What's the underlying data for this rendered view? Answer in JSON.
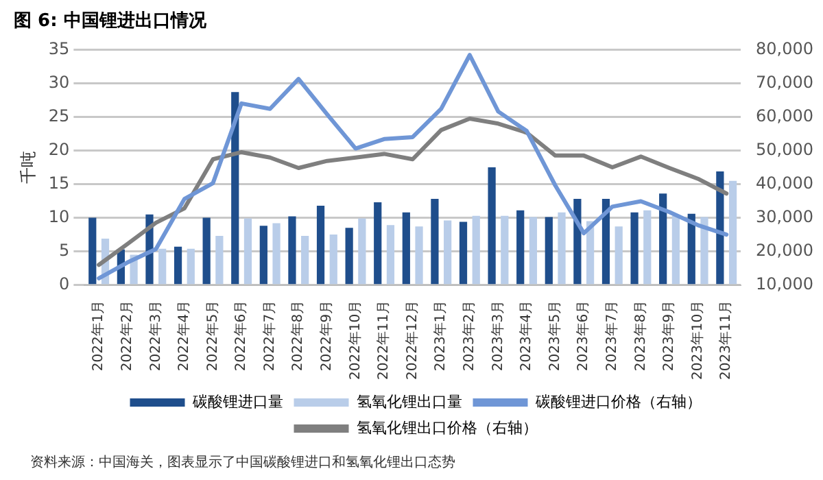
{
  "chart_data": {
    "type": "bar",
    "title": "图 6:  中国锂进出口情况",
    "ylabel": "千吨",
    "categories": [
      "2022年1月",
      "2022年2月",
      "2022年3月",
      "2022年4月",
      "2022年5月",
      "2022年6月",
      "2022年7月",
      "2022年8月",
      "2022年9月",
      "2022年10月",
      "2022年11月",
      "2022年12月",
      "2023年1月",
      "2023年2月",
      "2023年3月",
      "2023年4月",
      "2023年5月",
      "2023年6月",
      "2023年7月",
      "2023年8月",
      "2023年9月",
      "2023年10月",
      "2023年11月"
    ],
    "series": [
      {
        "name": "碳酸锂进口量",
        "color": "#1f4e8c",
        "values": [
          10,
          5.3,
          10.5,
          5.7,
          10,
          28.7,
          8.8,
          10.2,
          11.8,
          8.5,
          12.3,
          10.8,
          12.8,
          9.4,
          17.5,
          11.1,
          10.1,
          12.8,
          12.8,
          10.8,
          13.6,
          10.6,
          16.9
        ]
      },
      {
        "name": "氢氧化锂出口量",
        "color": "#b9cde9",
        "values": [
          6.9,
          4.5,
          5.4,
          5.4,
          7.3,
          9.9,
          9.2,
          7.3,
          7.5,
          9.9,
          8.9,
          8.7,
          9.6,
          10.3,
          10.3,
          10.1,
          10.8,
          9.5,
          8.7,
          11.1,
          10.3,
          10.1,
          15.5
        ]
      },
      {
        "name": "碳酸锂进口价格（右轴）",
        "type": "line",
        "axis": "y2",
        "color": "#6f96d6",
        "values": [
          12000,
          16700,
          20700,
          35600,
          40300,
          64000,
          62400,
          71300,
          60800,
          50600,
          53400,
          54000,
          62400,
          78400,
          61600,
          55800,
          39600,
          25400,
          33300,
          34900,
          31700,
          27800,
          25000
        ]
      },
      {
        "name": "氢氧化锂出口价格（右轴）",
        "type": "line",
        "axis": "y2",
        "color": "#7f7f7f",
        "values": [
          16000,
          22200,
          28500,
          32800,
          47400,
          49500,
          47900,
          44800,
          46900,
          47900,
          49000,
          47400,
          56100,
          59500,
          58000,
          55300,
          48500,
          48500,
          45000,
          48200,
          44800,
          41600,
          37200
        ]
      }
    ],
    "ylim": [
      0,
      35
    ],
    "yticks": [
      0,
      5,
      10,
      15,
      20,
      25,
      30,
      35
    ],
    "y2lim": [
      10000,
      80000
    ],
    "y2ticks": [
      {
        "value": 10000,
        "label": "10,000"
      },
      {
        "value": 20000,
        "label": "20,000"
      },
      {
        "value": 30000,
        "label": "30,000"
      },
      {
        "value": 40000,
        "label": "40,000"
      },
      {
        "value": 50000,
        "label": "50,000"
      },
      {
        "value": 60000,
        "label": "60,000"
      },
      {
        "value": 70000,
        "label": "70,000"
      },
      {
        "value": 80000,
        "label": "80,000"
      }
    ],
    "grid": "y",
    "legend": "bottom",
    "marker": "none",
    "line_style": "solid",
    "annotations": [
      "资料来源：中国海关，图表显示了中国碳酸锂进口和氢氧化锂出口态势"
    ]
  }
}
